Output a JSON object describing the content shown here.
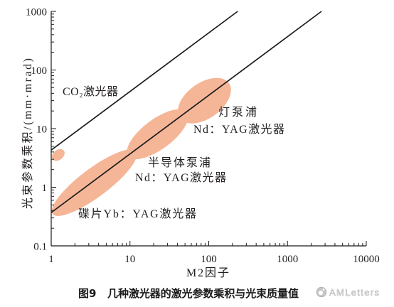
{
  "chart_data": {
    "type": "line",
    "xscale": "log",
    "yscale": "log",
    "xlabel": "M2因子",
    "ylabel": "光束参数乘积/(mm·mrad)",
    "xlim": [
      1,
      10000
    ],
    "ylim": [
      0.1,
      1000
    ],
    "xticks": [
      1,
      10,
      100,
      1000,
      10000
    ],
    "xtick_labels": [
      "1",
      "10",
      "100",
      "1000",
      "10000"
    ],
    "yticks": [
      1000,
      100,
      10,
      1,
      0.1
    ],
    "ytick_labels": [
      "1000",
      "100",
      "10",
      "1",
      "0.1"
    ],
    "grid": false,
    "legend": false,
    "line_color": "#1a1a1a",
    "region_color": "#f5b698",
    "series": [
      {
        "x": [
          1,
          233
        ],
        "y": [
          4.3,
          1000
        ]
      },
      {
        "x": [
          1,
          2700
        ],
        "y": [
          0.37,
          1000
        ]
      }
    ],
    "regions": [
      {
        "label": [
          "CO₂激光器"
        ],
        "x_range": [
          1.04,
          1.45
        ],
        "y_range": [
          3.0,
          4.2
        ]
      },
      {
        "label": [
          "碟片Yb：YAG激光器"
        ],
        "x_range": [
          1.04,
          12
        ],
        "y_range": [
          0.35,
          4.1
        ]
      },
      {
        "label": [
          "半导体泵浦",
          "Nd：YAG激光器"
        ],
        "x_range": [
          9.5,
          53
        ],
        "y_range": [
          3.4,
          19
        ]
      },
      {
        "label": [
          "灯泵浦",
          "Nd：YAG激光器"
        ],
        "x_range": [
          43,
          180
        ],
        "y_range": [
          15,
          60
        ]
      }
    ]
  },
  "caption": {
    "figure_number": "图9",
    "text": "几种激光器的激光参数乘积与光束质量值"
  },
  "watermark": {
    "text": "AMLetters",
    "icon": "watermark-logo-icon"
  }
}
